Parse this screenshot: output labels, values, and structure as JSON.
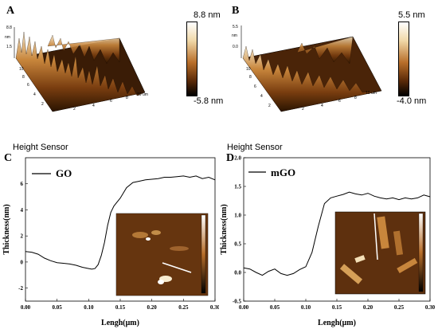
{
  "panels": {
    "A": {
      "label": "A",
      "colorbar": {
        "max": "8.8 nm",
        "min": "-5.8 nm"
      },
      "axis_ticks": {
        "z": [
          "8.8",
          "1.5"
        ],
        "y": [
          "10",
          "8",
          "6",
          "4",
          "2"
        ],
        "x": [
          "2",
          "4",
          "6",
          "8",
          "10 um"
        ],
        "x_unit_label": "um",
        "z_unit_label": "nm"
      }
    },
    "B": {
      "label": "B",
      "colorbar": {
        "max": "5.5 nm",
        "min": "-4.0 nm"
      },
      "axis_ticks": {
        "z": [
          "5.5",
          "0.0"
        ],
        "y": [
          "10",
          "8",
          "6",
          "4",
          "2"
        ],
        "x": [
          "2",
          "4",
          "6",
          "8",
          "10 um"
        ],
        "x_unit_label": "um",
        "z_unit_label": "nm"
      }
    },
    "C": {
      "label": "C",
      "header": "Height Sensor"
    },
    "D": {
      "label": "D",
      "header": "Height Sensor"
    }
  },
  "colors": {
    "afm_dark": "#2a1400",
    "afm_mid": "#8a4a14",
    "afm_light": "#f4e6c8"
  },
  "chart_data": [
    {
      "type": "line",
      "panel": "C",
      "xlabel": "Lengh(μm)",
      "ylabel": "Thickness(nm)",
      "xlim": [
        0.0,
        0.3
      ],
      "ylim": [
        -3,
        8
      ],
      "xticks": [
        "0.00",
        "0.05",
        "0.10",
        "0.15",
        "0.20",
        "0.25",
        "0.30"
      ],
      "yticks": [
        "-2",
        "0",
        "2",
        "4",
        "6"
      ],
      "series": [
        {
          "name": "GO",
          "x": [
            0.0,
            0.01,
            0.02,
            0.03,
            0.04,
            0.05,
            0.06,
            0.07,
            0.08,
            0.09,
            0.1,
            0.105,
            0.11,
            0.115,
            0.12,
            0.125,
            0.13,
            0.135,
            0.14,
            0.15,
            0.16,
            0.17,
            0.18,
            0.19,
            0.2,
            0.21,
            0.22,
            0.23,
            0.24,
            0.25,
            0.26,
            0.27,
            0.28,
            0.29,
            0.3
          ],
          "y": [
            0.8,
            0.75,
            0.6,
            0.3,
            0.1,
            -0.05,
            -0.1,
            -0.15,
            -0.25,
            -0.4,
            -0.5,
            -0.55,
            -0.5,
            -0.2,
            0.5,
            1.5,
            2.8,
            3.8,
            4.3,
            4.9,
            5.7,
            6.1,
            6.2,
            6.3,
            6.35,
            6.4,
            6.5,
            6.5,
            6.55,
            6.6,
            6.5,
            6.6,
            6.4,
            6.5,
            6.3
          ]
        }
      ]
    },
    {
      "type": "line",
      "panel": "D",
      "xlabel": "Lengh(μm)",
      "ylabel": "Thickness(nm)",
      "xlim": [
        0.0,
        0.3
      ],
      "ylim": [
        -0.5,
        2.0
      ],
      "xticks": [
        "0.00",
        "0.05",
        "0.10",
        "0.15",
        "0.20",
        "0.25",
        "0.30"
      ],
      "yticks": [
        "-0.5",
        "0.0",
        "0.5",
        "1.0",
        "1.5",
        "2.0"
      ],
      "series": [
        {
          "name": "mGO",
          "x": [
            0.0,
            0.01,
            0.02,
            0.03,
            0.04,
            0.05,
            0.06,
            0.07,
            0.08,
            0.09,
            0.1,
            0.11,
            0.12,
            0.13,
            0.14,
            0.15,
            0.16,
            0.17,
            0.18,
            0.19,
            0.2,
            0.21,
            0.22,
            0.23,
            0.24,
            0.25,
            0.26,
            0.27,
            0.28,
            0.29,
            0.3
          ],
          "y": [
            0.08,
            0.06,
            0.0,
            -0.05,
            0.02,
            0.06,
            -0.02,
            -0.05,
            -0.02,
            0.05,
            0.1,
            0.35,
            0.8,
            1.2,
            1.3,
            1.33,
            1.36,
            1.4,
            1.37,
            1.35,
            1.38,
            1.33,
            1.3,
            1.28,
            1.3,
            1.27,
            1.3,
            1.28,
            1.3,
            1.35,
            1.32
          ]
        }
      ]
    }
  ]
}
